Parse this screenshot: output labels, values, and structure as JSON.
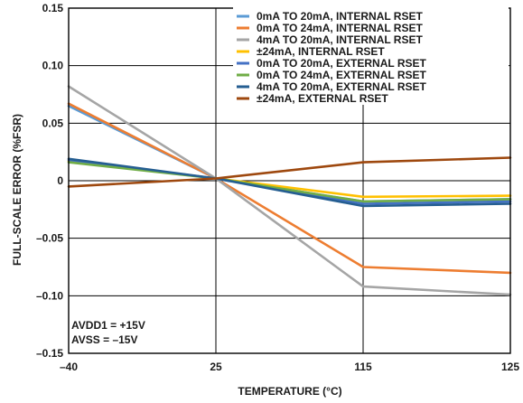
{
  "chart_data": {
    "type": "line",
    "xlabel": "TEMPERATURE (°C)",
    "ylabel": "FULL-SCALE ERROR (%FSR)",
    "x_categories": [
      "–40",
      "25",
      "115",
      "125"
    ],
    "ylim": [
      -0.15,
      0.15
    ],
    "y_ticks": [
      0.15,
      0.1,
      0.05,
      0,
      -0.05,
      -0.1,
      -0.15
    ],
    "y_tick_labels": [
      "0.15",
      "0.10",
      "0.05",
      "0",
      "–0.05",
      "–0.10",
      "–0.15"
    ],
    "grid": true,
    "legend_position": "top-right",
    "series": [
      {
        "name": "0mA TO 20mA, INTERNAL RSET",
        "color": "#5b9bd5",
        "values": [
          0.065,
          0.002,
          -0.018,
          -0.016
        ]
      },
      {
        "name": "0mA TO 24mA, INTERNAL RSET",
        "color": "#ed7d31",
        "values": [
          0.067,
          0.002,
          -0.075,
          -0.08
        ]
      },
      {
        "name": "4mA TO 20mA, INTERNAL RSET",
        "color": "#a5a5a5",
        "values": [
          0.082,
          0.002,
          -0.092,
          -0.099
        ]
      },
      {
        "name": "±24mA, INTERNAL RSET",
        "color": "#ffc000",
        "values": [
          0.017,
          0.002,
          -0.014,
          -0.013
        ]
      },
      {
        "name": "0mA TO 20mA, EXTERNAL RSET",
        "color": "#4472c4",
        "values": [
          0.018,
          0.002,
          -0.02,
          -0.018
        ]
      },
      {
        "name": "0mA TO 24mA, EXTERNAL RSET",
        "color": "#70ad47",
        "values": [
          0.016,
          0.002,
          -0.018,
          -0.016
        ]
      },
      {
        "name": "4mA TO 20mA, EXTERNAL RSET",
        "color": "#255e91",
        "values": [
          0.019,
          0.002,
          -0.022,
          -0.02
        ]
      },
      {
        "name": "±24mA, EXTERNAL RSET",
        "color": "#9e480e",
        "values": [
          -0.005,
          0.002,
          0.016,
          0.02
        ]
      }
    ],
    "annotations": [
      "AVDD1 = +15V",
      "AVSS = –15V"
    ]
  }
}
